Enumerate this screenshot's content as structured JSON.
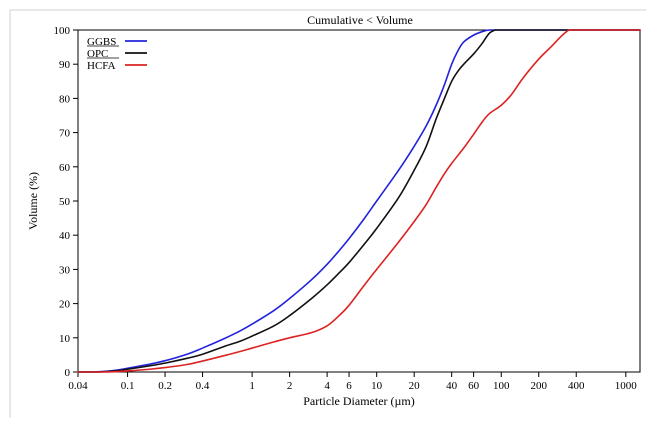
{
  "chart_data": {
    "type": "line",
    "title": "Cumulative < Volume",
    "xlabel": "Particle Diameter (µm)",
    "ylabel": "Volume (%)",
    "x_scale": "log",
    "xlim": [
      0.04,
      1300
    ],
    "ylim": [
      0,
      100
    ],
    "x_ticks": [
      {
        "v": 0.04,
        "label": "0.04"
      },
      {
        "v": 0.1,
        "label": "0.1"
      },
      {
        "v": 0.2,
        "label": "0.2"
      },
      {
        "v": 0.4,
        "label": "0.4"
      },
      {
        "v": 1,
        "label": "1"
      },
      {
        "v": 2,
        "label": "2"
      },
      {
        "v": 4,
        "label": "4"
      },
      {
        "v": 6,
        "label": "6"
      },
      {
        "v": 10,
        "label": "10"
      },
      {
        "v": 20,
        "label": "20"
      },
      {
        "v": 40,
        "label": "40"
      },
      {
        "v": 60,
        "label": "60"
      },
      {
        "v": 100,
        "label": "100"
      },
      {
        "v": 200,
        "label": "200"
      },
      {
        "v": 400,
        "label": "400"
      },
      {
        "v": 1000,
        "label": "1000"
      }
    ],
    "y_ticks": [
      0,
      10,
      20,
      30,
      40,
      50,
      60,
      70,
      80,
      90,
      100
    ],
    "grid": false,
    "legend_position": "top-left",
    "series": [
      {
        "name": "GGBS",
        "color": "#2222dd",
        "points": [
          [
            0.04,
            0
          ],
          [
            0.06,
            0.1
          ],
          [
            0.08,
            0.5
          ],
          [
            0.1,
            1.1
          ],
          [
            0.15,
            2.3
          ],
          [
            0.2,
            3.3
          ],
          [
            0.3,
            5.2
          ],
          [
            0.4,
            7
          ],
          [
            0.6,
            9.8
          ],
          [
            0.8,
            12
          ],
          [
            1,
            14
          ],
          [
            1.5,
            18
          ],
          [
            2,
            21.5
          ],
          [
            3,
            27
          ],
          [
            4,
            31.5
          ],
          [
            5,
            35.5
          ],
          [
            6,
            39
          ],
          [
            8,
            45
          ],
          [
            10,
            50
          ],
          [
            15,
            59
          ],
          [
            20,
            66
          ],
          [
            25,
            72
          ],
          [
            30,
            78
          ],
          [
            35,
            84
          ],
          [
            40,
            90
          ],
          [
            45,
            94
          ],
          [
            50,
            96.5
          ],
          [
            60,
            98.5
          ],
          [
            70,
            99.5
          ],
          [
            80,
            100
          ],
          [
            100,
            100
          ],
          [
            300,
            100
          ],
          [
            1300,
            100
          ]
        ]
      },
      {
        "name": "OPC",
        "color": "#111111",
        "points": [
          [
            0.04,
            0
          ],
          [
            0.06,
            0
          ],
          [
            0.08,
            0.3
          ],
          [
            0.1,
            0.8
          ],
          [
            0.15,
            1.8
          ],
          [
            0.2,
            2.6
          ],
          [
            0.3,
            4
          ],
          [
            0.4,
            5.2
          ],
          [
            0.6,
            7.5
          ],
          [
            0.8,
            9
          ],
          [
            1,
            10.5
          ],
          [
            1.5,
            13.5
          ],
          [
            2,
            16.5
          ],
          [
            3,
            21.5
          ],
          [
            4,
            25.5
          ],
          [
            5,
            29
          ],
          [
            6,
            32
          ],
          [
            8,
            37.5
          ],
          [
            10,
            42
          ],
          [
            15,
            51
          ],
          [
            20,
            59
          ],
          [
            25,
            66
          ],
          [
            30,
            74
          ],
          [
            35,
            80
          ],
          [
            40,
            85
          ],
          [
            45,
            88
          ],
          [
            50,
            90
          ],
          [
            60,
            93
          ],
          [
            70,
            96
          ],
          [
            80,
            99
          ],
          [
            90,
            100
          ],
          [
            100,
            100
          ],
          [
            300,
            100
          ],
          [
            1300,
            100
          ]
        ]
      },
      {
        "name": "HCFA",
        "color": "#dd2222",
        "points": [
          [
            0.04,
            0
          ],
          [
            0.06,
            0
          ],
          [
            0.08,
            0.1
          ],
          [
            0.1,
            0.3
          ],
          [
            0.15,
            0.8
          ],
          [
            0.2,
            1.3
          ],
          [
            0.3,
            2.2
          ],
          [
            0.4,
            3.2
          ],
          [
            0.6,
            4.8
          ],
          [
            0.8,
            6
          ],
          [
            1,
            7
          ],
          [
            1.5,
            8.8
          ],
          [
            2,
            10
          ],
          [
            3,
            11.5
          ],
          [
            4,
            13.5
          ],
          [
            5,
            16.5
          ],
          [
            6,
            19.5
          ],
          [
            8,
            25.5
          ],
          [
            10,
            30
          ],
          [
            15,
            38
          ],
          [
            20,
            44
          ],
          [
            25,
            49
          ],
          [
            30,
            54
          ],
          [
            35,
            58
          ],
          [
            40,
            61
          ],
          [
            50,
            65.5
          ],
          [
            60,
            69.5
          ],
          [
            70,
            73
          ],
          [
            80,
            75.5
          ],
          [
            100,
            78
          ],
          [
            120,
            81
          ],
          [
            150,
            86
          ],
          [
            200,
            91.5
          ],
          [
            250,
            95
          ],
          [
            300,
            98
          ],
          [
            350,
            100
          ],
          [
            400,
            100
          ],
          [
            1300,
            100
          ]
        ]
      }
    ]
  }
}
